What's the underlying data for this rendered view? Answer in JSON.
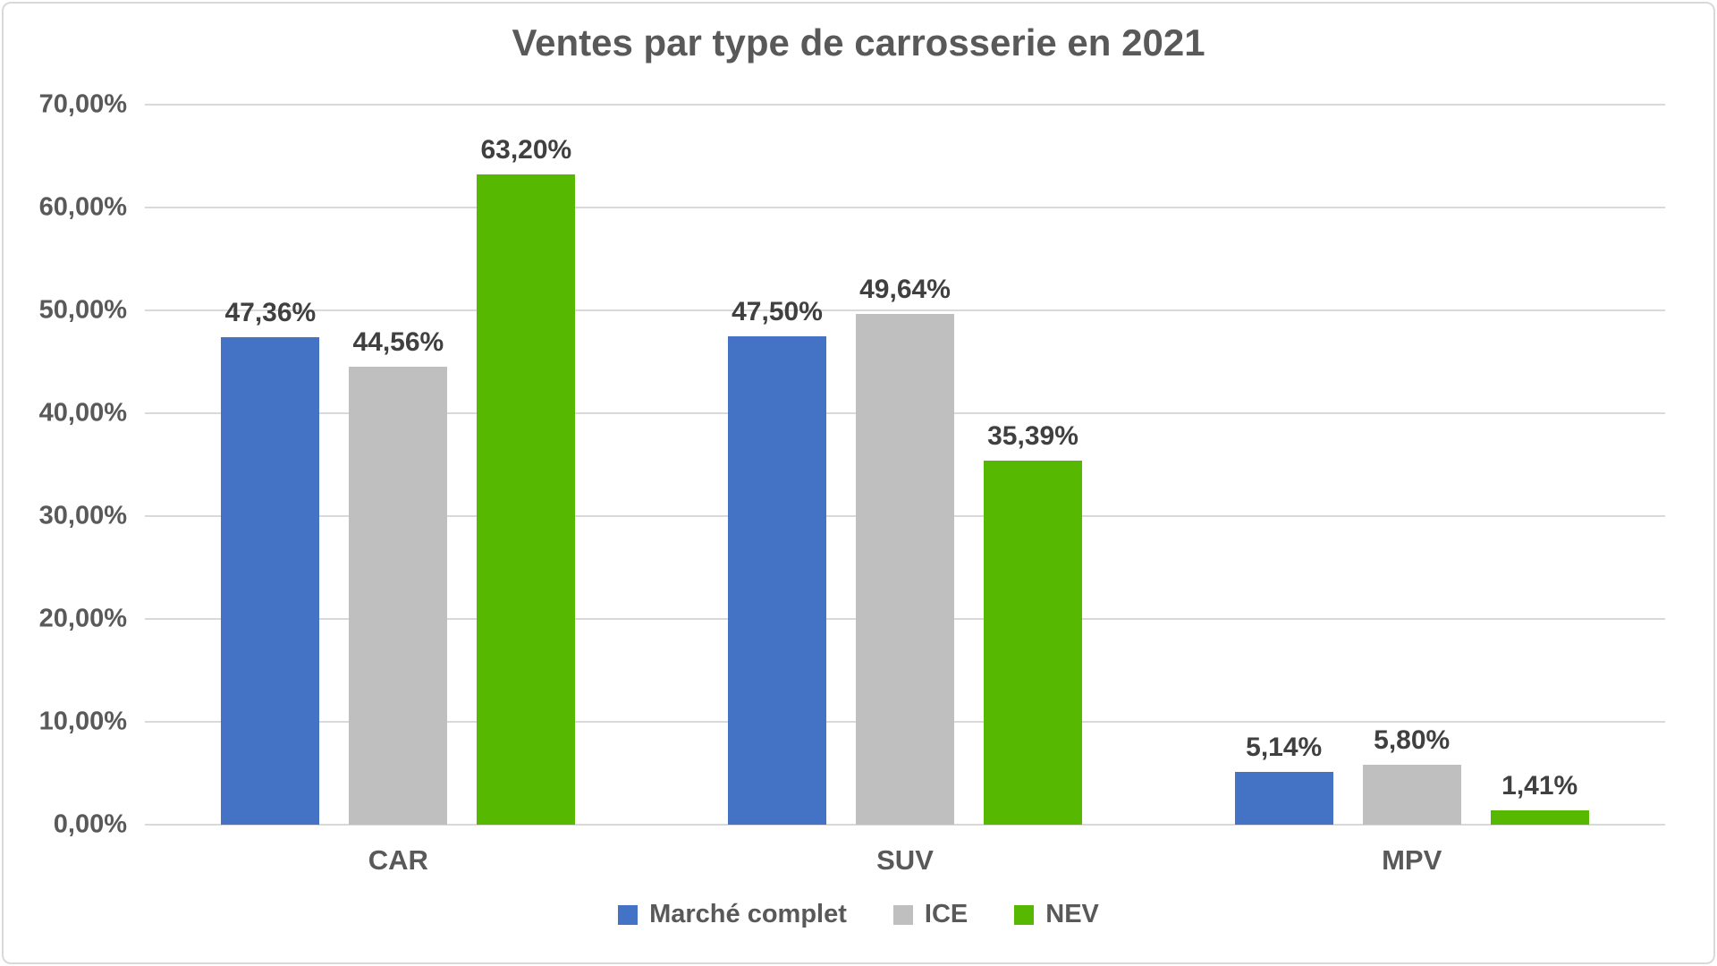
{
  "title": "Ventes par type de carrosserie en 2021",
  "chart_data": {
    "type": "bar",
    "title": "Ventes par type de carrosserie en 2021",
    "categories": [
      "CAR",
      "SUV",
      "MPV"
    ],
    "series": [
      {
        "name": "Marché complet",
        "color": "#4472C4",
        "values": [
          47.36,
          47.5,
          5.14
        ],
        "labels": [
          "47,36%",
          "47,50%",
          "5,14%"
        ]
      },
      {
        "name": "ICE",
        "color": "#BFBFBF",
        "values": [
          44.56,
          49.64,
          5.8
        ],
        "labels": [
          "44,56%",
          "49,64%",
          "5,80%"
        ]
      },
      {
        "name": "NEV",
        "color": "#56B800",
        "values": [
          63.2,
          35.39,
          1.41
        ],
        "labels": [
          "63,20%",
          "35,39%",
          "1,41%"
        ]
      }
    ],
    "xlabel": "",
    "ylabel": "",
    "ylim": [
      0,
      70
    ],
    "yticks": [
      "70,00%",
      "60,00%",
      "50,00%",
      "40,00%",
      "30,00%",
      "20,00%",
      "10,00%",
      "0,00%"
    ],
    "grid": true,
    "gridline_color": "#D9D9D9",
    "legend_position": "bottom",
    "text_colors": {
      "title": "#595959",
      "axis": "#595959",
      "data_labels": "#404040"
    }
  }
}
